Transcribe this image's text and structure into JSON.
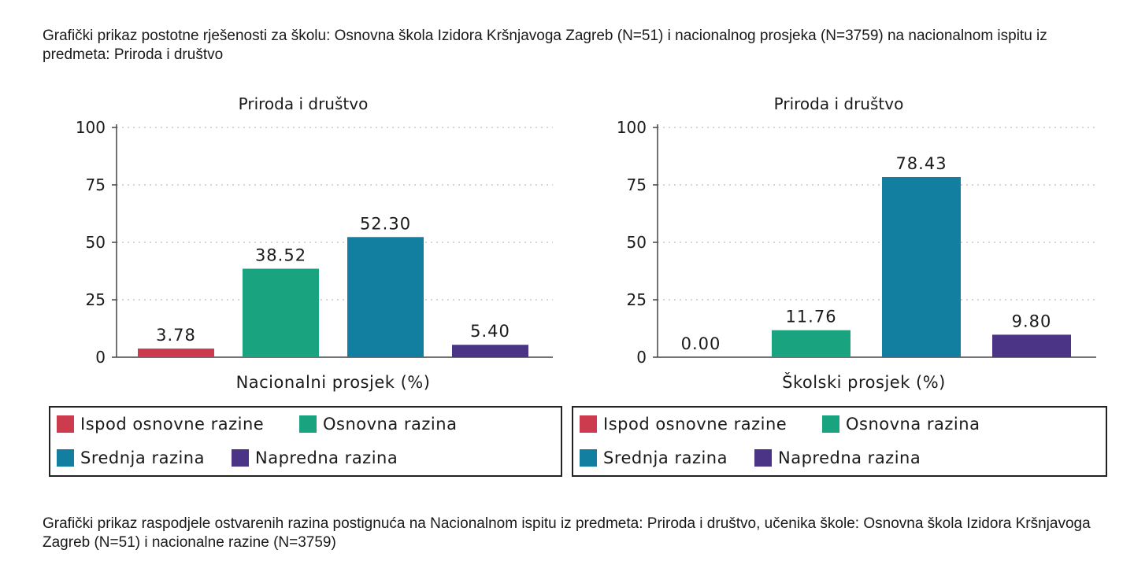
{
  "captions": {
    "top": "Grafički prikaz postotne rješenosti za školu: Osnovna škola Izidora Kršnjavoga Zagreb (N=51) i nacionalnog prosjeka (N=3759) na nacionalnom ispitu iz predmeta: Priroda i društvo",
    "bottom": "Grafički prikaz raspodjele ostvarenih razina postignuća na Nacionalnom ispitu iz predmeta: Priroda i društvo, učenika škole: Osnovna škola Izidora Kršnjavoga Zagreb (N=51) i nacionalne razine (N=3759)"
  },
  "colors": {
    "ispod": "#cc3b4e",
    "osnovna": "#1aa37f",
    "srednja": "#127fa0",
    "napredna": "#4b3486"
  },
  "chart_data": [
    {
      "type": "bar",
      "title": "Priroda i društvo",
      "xlabel": "Nacionalni prosjek (%)",
      "ylabel": "",
      "ylim": [
        0,
        100
      ],
      "yticks": [
        "0",
        "25",
        "50",
        "75",
        "100"
      ],
      "grid": true,
      "legend_position": "bottom",
      "categories": [
        "Ispod osnovne razine",
        "Osnovna razina",
        "Srednja razina",
        "Napredna razina"
      ],
      "values": [
        3.78,
        38.52,
        52.3,
        5.4
      ],
      "labels": [
        "3.78",
        "38.52",
        "52.30",
        "5.40"
      ],
      "colors": [
        "#cc3b4e",
        "#1aa37f",
        "#127fa0",
        "#4b3486"
      ]
    },
    {
      "type": "bar",
      "title": "Priroda i društvo",
      "xlabel": "Školski prosjek (%)",
      "ylabel": "",
      "ylim": [
        0,
        100
      ],
      "yticks": [
        "0",
        "25",
        "50",
        "75",
        "100"
      ],
      "grid": true,
      "legend_position": "bottom",
      "categories": [
        "Ispod osnovne razine",
        "Osnovna razina",
        "Srednja razina",
        "Napredna razina"
      ],
      "values": [
        0.0,
        11.76,
        78.43,
        9.8
      ],
      "labels": [
        "0.00",
        "11.76",
        "78.43",
        "9.80"
      ],
      "colors": [
        "#cc3b4e",
        "#1aa37f",
        "#127fa0",
        "#4b3486"
      ]
    }
  ]
}
